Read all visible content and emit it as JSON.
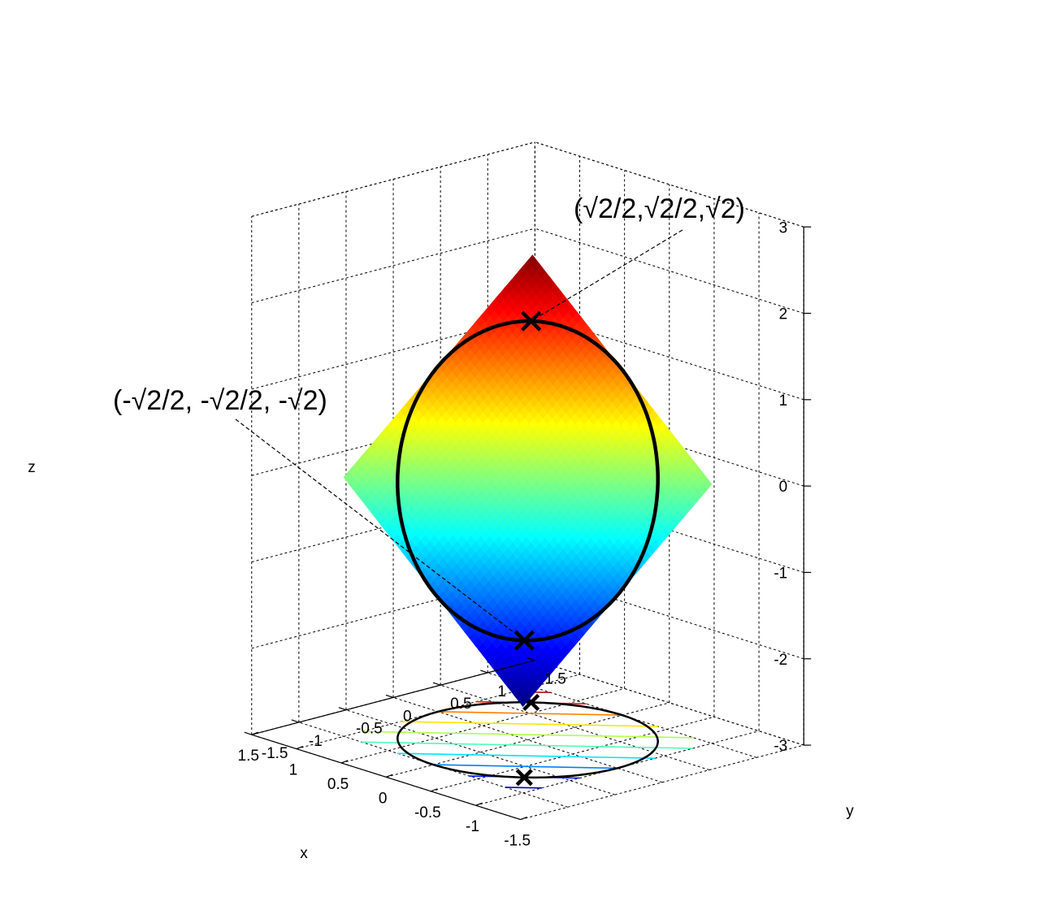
{
  "chart_data": {
    "type": "surface3d",
    "title": "",
    "surface": {
      "equation": "z = x + y",
      "x_range": [
        -1,
        1
      ],
      "y_range": [
        -1,
        1
      ],
      "colormap": "jet",
      "clim": [
        -2,
        2
      ]
    },
    "curve_on_surface": {
      "description": "x^2 + y^2 = 1 on z = x + y",
      "x": "cos(t)",
      "y": "sin(t)",
      "z": "cos(t) + sin(t)",
      "color": "#000000"
    },
    "projected_circle": {
      "z": -3,
      "radius": 1,
      "color": "#000000"
    },
    "contour_levels": [
      -1.8,
      -1.4,
      -1,
      -0.6,
      -0.2,
      0.2,
      0.6,
      1,
      1.4,
      1.8
    ],
    "points": [
      {
        "x": 0.7071,
        "y": 0.7071,
        "z": 1.4142,
        "label": "(√2/2,√2/2,√2)"
      },
      {
        "x": -0.7071,
        "y": -0.7071,
        "z": -1.4142,
        "label": "(-√2/2, -√2/2, -√2)"
      }
    ],
    "xlabel": "x",
    "ylabel": "y",
    "zlabel": "z",
    "xlim": [
      -1.5,
      1.5
    ],
    "ylim": [
      -1.5,
      1.5
    ],
    "zlim": [
      -3,
      3
    ],
    "x_ticks": [
      "-1.5",
      "-1",
      "-0.5",
      "0",
      "0.5",
      "1",
      "1.5"
    ],
    "y_ticks": [
      "-1.5",
      "-1",
      "-0.5",
      "0",
      "0.5",
      "1",
      "1.5"
    ],
    "z_ticks": [
      "-3",
      "-2",
      "-1",
      "0",
      "1",
      "2",
      "3"
    ],
    "grid": true
  }
}
